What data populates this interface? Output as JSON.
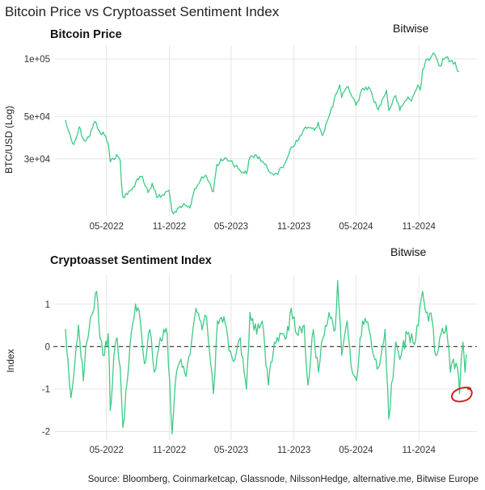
{
  "page_title": "Bitcoin Price vs Cryptoasset Sentiment Index",
  "source": "Source: Bloomberg, Coinmarketcap, Glassnode, NilssonHedge, alternative.me, Bitwise Europe",
  "colors": {
    "series": "#3ecb85",
    "grid": "#e6e6e6",
    "zero_line": "#444444",
    "annotation": "#d42020",
    "text": "#222222"
  },
  "chart_data": [
    {
      "type": "line",
      "title": "Bitcoin Price",
      "brand": "Bitwise",
      "ylabel": "BTC/USD (Log)",
      "xlabel": "",
      "y_scale": "log",
      "ylim": [
        15000,
        118000
      ],
      "yticks": [
        {
          "value": 100000,
          "label": "1e+05"
        },
        {
          "value": 50000,
          "label": "5e+04"
        },
        {
          "value": 30000,
          "label": "3e+04"
        }
      ],
      "xticks": [
        {
          "date": "2022-05-01",
          "label": "05-2022"
        },
        {
          "date": "2022-11-01",
          "label": "11-2022"
        },
        {
          "date": "2023-05-01",
          "label": "05-2023"
        },
        {
          "date": "2023-11-01",
          "label": "11-2023"
        },
        {
          "date": "2024-05-01",
          "label": "05-2024"
        },
        {
          "date": "2024-11-01",
          "label": "11-2024"
        }
      ],
      "xlim": [
        "2021-12-01",
        "2025-04-20"
      ],
      "grid": true,
      "series": [
        {
          "points": [
            [
              "2022-01-01",
              47500
            ],
            [
              "2022-01-10",
              42000
            ],
            [
              "2022-01-22",
              36000
            ],
            [
              "2022-02-01",
              38500
            ],
            [
              "2022-02-10",
              44000
            ],
            [
              "2022-02-24",
              37500
            ],
            [
              "2022-03-10",
              39000
            ],
            [
              "2022-03-28",
              47000
            ],
            [
              "2022-04-10",
              42000
            ],
            [
              "2022-04-28",
              39500
            ],
            [
              "2022-05-06",
              36000
            ],
            [
              "2022-05-12",
              29000
            ],
            [
              "2022-05-31",
              31500
            ],
            [
              "2022-06-10",
              29500
            ],
            [
              "2022-06-14",
              22000
            ],
            [
              "2022-06-18",
              19000
            ],
            [
              "2022-07-01",
              19500
            ],
            [
              "2022-07-15",
              20800
            ],
            [
              "2022-07-30",
              23500
            ],
            [
              "2022-08-14",
              24300
            ],
            [
              "2022-08-31",
              20000
            ],
            [
              "2022-09-12",
              22300
            ],
            [
              "2022-09-25",
              18900
            ],
            [
              "2022-10-10",
              19200
            ],
            [
              "2022-10-31",
              20500
            ],
            [
              "2022-11-09",
              15900
            ],
            [
              "2022-11-21",
              15800
            ],
            [
              "2022-12-10",
              17100
            ],
            [
              "2022-12-31",
              16600
            ],
            [
              "2023-01-14",
              20900
            ],
            [
              "2023-01-31",
              23100
            ],
            [
              "2023-02-16",
              24600
            ],
            [
              "2023-03-10",
              20200
            ],
            [
              "2023-03-20",
              28000
            ],
            [
              "2023-04-13",
              30300
            ],
            [
              "2023-04-30",
              29300
            ],
            [
              "2023-05-25",
              26400
            ],
            [
              "2023-06-15",
              25100
            ],
            [
              "2023-06-25",
              30500
            ],
            [
              "2023-07-14",
              31300
            ],
            [
              "2023-07-31",
              29200
            ],
            [
              "2023-08-18",
              26100
            ],
            [
              "2023-09-11",
              25100
            ],
            [
              "2023-09-30",
              27000
            ],
            [
              "2023-10-24",
              34500
            ],
            [
              "2023-11-15",
              37800
            ],
            [
              "2023-12-05",
              44000
            ],
            [
              "2023-12-31",
              42300
            ],
            [
              "2024-01-11",
              46600
            ],
            [
              "2024-01-23",
              39800
            ],
            [
              "2024-02-15",
              52000
            ],
            [
              "2024-03-05",
              66000
            ],
            [
              "2024-03-14",
              73000
            ],
            [
              "2024-03-20",
              63000
            ],
            [
              "2024-04-08",
              71600
            ],
            [
              "2024-05-01",
              57200
            ],
            [
              "2024-05-21",
              70100
            ],
            [
              "2024-06-07",
              71200
            ],
            [
              "2024-07-05",
              54200
            ],
            [
              "2024-07-29",
              68500
            ],
            [
              "2024-08-05",
              53900
            ],
            [
              "2024-08-25",
              64200
            ],
            [
              "2024-09-06",
              53800
            ],
            [
              "2024-09-30",
              63300
            ],
            [
              "2024-10-10",
              60300
            ],
            [
              "2024-10-29",
              72700
            ],
            [
              "2024-11-05",
              68800
            ],
            [
              "2024-11-12",
              88000
            ],
            [
              "2024-11-22",
              98900
            ],
            [
              "2024-12-05",
              101000
            ],
            [
              "2024-12-17",
              106100
            ],
            [
              "2024-12-30",
              92500
            ],
            [
              "2025-01-20",
              102000
            ],
            [
              "2025-02-02",
              97500
            ],
            [
              "2025-02-15",
              96000
            ],
            [
              "2025-02-25",
              86000
            ]
          ]
        }
      ]
    },
    {
      "type": "line",
      "title": "Cryptoasset Sentiment Index",
      "brand": "Bitwise",
      "ylabel": "Index",
      "xlabel": "",
      "ylim": [
        -2.2,
        1.7
      ],
      "yticks": [
        {
          "value": 1,
          "label": "1"
        },
        {
          "value": 0,
          "label": "0"
        },
        {
          "value": -1,
          "label": "-1"
        },
        {
          "value": -2,
          "label": "-2"
        }
      ],
      "xticks": [
        {
          "date": "2022-05-01",
          "label": "05-2022"
        },
        {
          "date": "2022-11-01",
          "label": "11-2022"
        },
        {
          "date": "2023-05-01",
          "label": "05-2023"
        },
        {
          "date": "2023-11-01",
          "label": "11-2023"
        },
        {
          "date": "2024-05-01",
          "label": "05-2024"
        },
        {
          "date": "2024-11-01",
          "label": "11-2024"
        }
      ],
      "xlim": [
        "2021-12-01",
        "2025-04-20"
      ],
      "grid": true,
      "zero_line": 0,
      "annotation": {
        "type": "circle",
        "date": "2025-03-06",
        "value": -1.15
      },
      "series": [
        {
          "points": [
            [
              "2022-01-01",
              0.4
            ],
            [
              "2022-01-08",
              -0.3
            ],
            [
              "2022-01-17",
              -1.2
            ],
            [
              "2022-01-28",
              -0.4
            ],
            [
              "2022-02-08",
              0.5
            ],
            [
              "2022-02-22",
              -0.8
            ],
            [
              "2022-03-04",
              0.1
            ],
            [
              "2022-03-22",
              0.8
            ],
            [
              "2022-04-02",
              1.3
            ],
            [
              "2022-04-12",
              0.2
            ],
            [
              "2022-04-25",
              -0.2
            ],
            [
              "2022-05-06",
              0.3
            ],
            [
              "2022-05-12",
              -1.5
            ],
            [
              "2022-05-22",
              -0.3
            ],
            [
              "2022-06-01",
              0.2
            ],
            [
              "2022-06-10",
              -0.5
            ],
            [
              "2022-06-18",
              -1.9
            ],
            [
              "2022-07-01",
              -0.8
            ],
            [
              "2022-07-12",
              0.3
            ],
            [
              "2022-07-25",
              1.0
            ],
            [
              "2022-08-08",
              0.6
            ],
            [
              "2022-08-20",
              -0.4
            ],
            [
              "2022-09-05",
              0.4
            ],
            [
              "2022-09-18",
              -0.6
            ],
            [
              "2022-10-05",
              0.2
            ],
            [
              "2022-10-26",
              0.3
            ],
            [
              "2022-11-09",
              -2.05
            ],
            [
              "2022-11-18",
              -0.9
            ],
            [
              "2022-12-05",
              -0.3
            ],
            [
              "2022-12-20",
              -0.7
            ],
            [
              "2023-01-05",
              0.1
            ],
            [
              "2023-01-18",
              0.9
            ],
            [
              "2023-02-05",
              0.4
            ],
            [
              "2023-02-18",
              0.7
            ],
            [
              "2023-03-10",
              -1.1
            ],
            [
              "2023-03-22",
              0.6
            ],
            [
              "2023-04-10",
              0.7
            ],
            [
              "2023-04-25",
              -0.1
            ],
            [
              "2023-05-12",
              -0.3
            ],
            [
              "2023-05-28",
              0.2
            ],
            [
              "2023-06-15",
              -1.0
            ],
            [
              "2023-06-25",
              0.8
            ],
            [
              "2023-07-15",
              0.3
            ],
            [
              "2023-07-31",
              0.6
            ],
            [
              "2023-08-18",
              -0.9
            ],
            [
              "2023-09-05",
              0.1
            ],
            [
              "2023-09-25",
              0.3
            ],
            [
              "2023-10-10",
              0.2
            ],
            [
              "2023-10-24",
              0.9
            ],
            [
              "2023-11-10",
              0.3
            ],
            [
              "2023-12-01",
              0.5
            ],
            [
              "2023-12-12",
              -0.9
            ],
            [
              "2023-12-28",
              0.4
            ],
            [
              "2024-01-12",
              -0.6
            ],
            [
              "2024-01-25",
              0.2
            ],
            [
              "2024-02-12",
              0.8
            ],
            [
              "2024-03-01",
              0.4
            ],
            [
              "2024-03-08",
              1.55
            ],
            [
              "2024-03-20",
              -0.2
            ],
            [
              "2024-04-05",
              0.6
            ],
            [
              "2024-04-20",
              -0.6
            ],
            [
              "2024-05-02",
              -0.8
            ],
            [
              "2024-05-20",
              0.6
            ],
            [
              "2024-06-08",
              0.4
            ],
            [
              "2024-06-25",
              -0.3
            ],
            [
              "2024-07-05",
              -0.5
            ],
            [
              "2024-07-25",
              0.4
            ],
            [
              "2024-08-05",
              -1.7
            ],
            [
              "2024-08-25",
              0.1
            ],
            [
              "2024-09-06",
              -0.3
            ],
            [
              "2024-09-28",
              0.3
            ],
            [
              "2024-10-15",
              0.1
            ],
            [
              "2024-10-30",
              0.5
            ],
            [
              "2024-11-12",
              1.3
            ],
            [
              "2024-11-22",
              0.8
            ],
            [
              "2024-12-10",
              0.6
            ],
            [
              "2024-12-20",
              -0.2
            ],
            [
              "2025-01-05",
              0.3
            ],
            [
              "2025-01-20",
              0.5
            ],
            [
              "2025-02-01",
              -0.6
            ],
            [
              "2025-02-10",
              -0.3
            ],
            [
              "2025-02-22",
              -0.5
            ],
            [
              "2025-02-28",
              -1.1
            ],
            [
              "2025-03-05",
              -0.3
            ],
            [
              "2025-03-10",
              0.1
            ],
            [
              "2025-03-16",
              -0.6
            ],
            [
              "2025-03-20",
              -0.2
            ]
          ]
        }
      ]
    }
  ]
}
